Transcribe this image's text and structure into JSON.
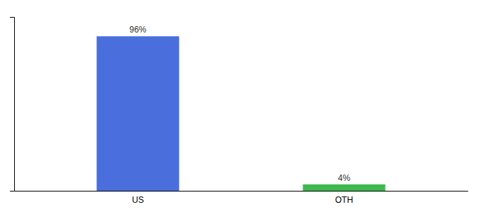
{
  "chart_data": {
    "type": "bar",
    "categories": [
      "US",
      "OTH"
    ],
    "values": [
      96,
      4
    ],
    "value_labels": [
      "96%",
      "4%"
    ],
    "colors": [
      "#4a6fdc",
      "#3dba4e"
    ],
    "ylim": [
      0,
      108
    ],
    "data_labels": true,
    "tick_labels": "x",
    "grid": false
  }
}
